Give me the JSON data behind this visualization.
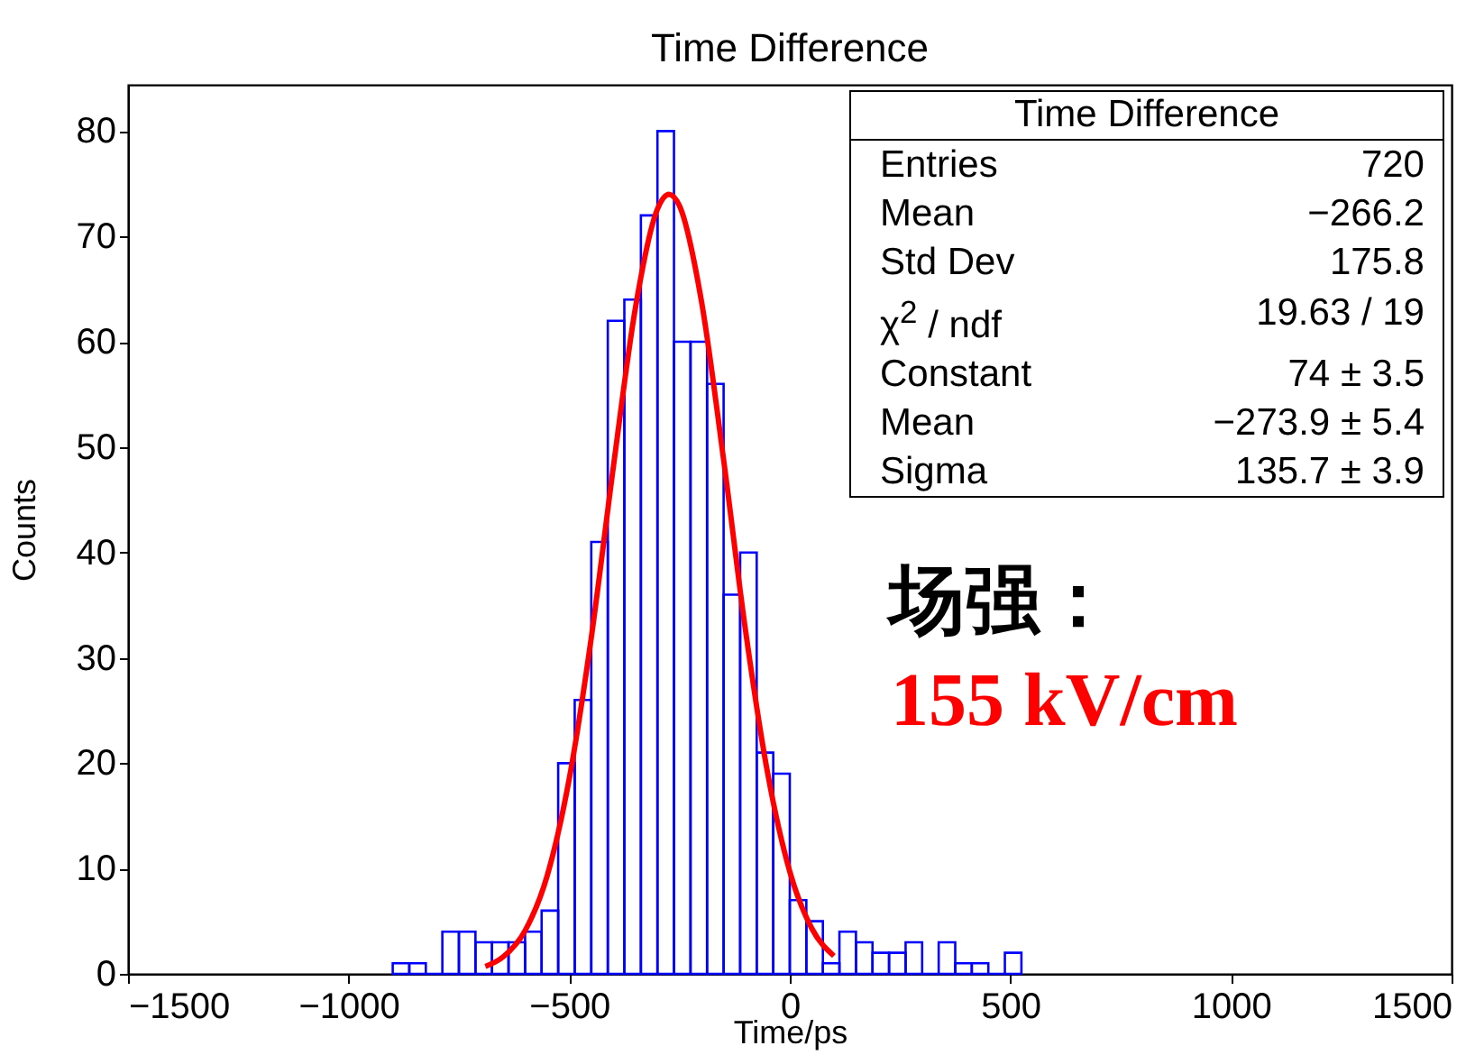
{
  "chart_data": {
    "type": "histogram",
    "title": "Time Difference",
    "xlabel": "Time/ps",
    "ylabel": "Counts",
    "xlim": [
      -1500,
      1500
    ],
    "xticks": [
      -1500,
      -1000,
      -500,
      0,
      500,
      1000,
      1500
    ],
    "ylim": [
      0,
      84.4
    ],
    "yticks": [
      0,
      10,
      20,
      30,
      40,
      50,
      60,
      70,
      80
    ],
    "grid": false,
    "series": [
      {
        "type": "histogram",
        "color": "#0000ff",
        "bins": [
          -900,
          -862.5,
          -825,
          -787.5,
          -750,
          -712.5,
          -675,
          -637.5,
          -600,
          -562.5,
          -525,
          -487.5,
          -450,
          -412.5,
          -375,
          -337.5,
          -300,
          -262.5,
          -225,
          -187.5,
          -150,
          -112.5,
          -75,
          -37.5,
          0,
          37.5,
          75,
          112.5,
          150,
          187.5,
          225,
          262.5,
          300,
          337.5,
          375,
          412.5,
          450,
          487.5,
          525
        ],
        "values": [
          1,
          1,
          0,
          4,
          4,
          3,
          3,
          3,
          4,
          6,
          20,
          26,
          41,
          62,
          64,
          72,
          80,
          60,
          60,
          56,
          36,
          40,
          21,
          19,
          7,
          5,
          1,
          4,
          3,
          2,
          2,
          3,
          0,
          3,
          1,
          1,
          0,
          2
        ]
      },
      {
        "type": "line",
        "color": "#ff0000",
        "x": [
          -690,
          -650,
          -600,
          -550,
          -500,
          -450,
          -400,
          -350,
          -300,
          -273.9,
          -250,
          -200,
          -150,
          -100,
          -50,
          0,
          50,
          100
        ],
        "values": [
          0.7,
          1.6,
          4.1,
          9.3,
          18.5,
          31.9,
          48.1,
          63.2,
          72.6,
          74,
          72.9,
          63.8,
          48.8,
          32.5,
          19.0,
          9.7,
          4.3,
          1.7
        ]
      }
    ],
    "annotations": [
      "Time Difference",
      "Entries",
      "720",
      "Mean",
      "−266.2",
      "Std Dev",
      "175.8",
      "χ$^{2}$ / ndf",
      "19.63 / 19",
      "Constant",
      "74 ± 3.5",
      "Mean",
      "−273.9 ± 5.4",
      "Sigma",
      "135.7 ± 3.9",
      "场强：",
      "155 kV/cm"
    ]
  }
}
